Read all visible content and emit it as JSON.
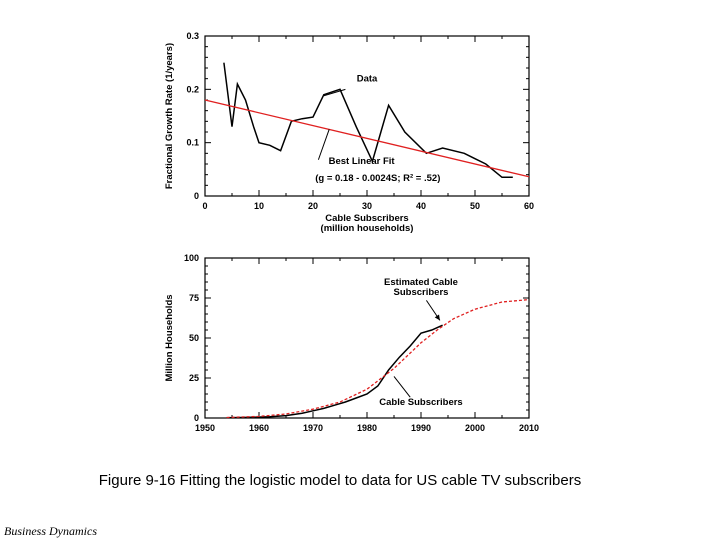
{
  "caption": "Figure 9-16 Fitting the logistic model to data for US cable TV subscribers",
  "footer": "Business Dynamics",
  "colors": {
    "data_line": "#000000",
    "fit_line": "#e02020",
    "estimated_line": "#e02020"
  },
  "chart_data": [
    {
      "type": "line",
      "xlabel": [
        "Cable Subscribers",
        "(million households)"
      ],
      "ylabel": "Fractional Growth Rate (1/years)",
      "xlim": [
        0,
        60
      ],
      "ylim": [
        0,
        0.3
      ],
      "xticks": [
        0,
        10,
        20,
        30,
        40,
        50,
        60
      ],
      "yticks": [
        0,
        0.1,
        0.2,
        0.3
      ],
      "series": [
        {
          "name": "Data",
          "x": [
            3.5,
            5,
            6,
            7.5,
            9,
            10,
            12,
            14,
            16,
            18,
            20,
            22,
            25,
            28,
            31,
            34,
            37,
            41,
            44,
            48,
            50,
            52,
            55,
            57
          ],
          "y": [
            0.25,
            0.13,
            0.21,
            0.18,
            0.13,
            0.1,
            0.095,
            0.085,
            0.14,
            0.145,
            0.148,
            0.19,
            0.2,
            0.13,
            0.065,
            0.17,
            0.12,
            0.08,
            0.09,
            0.08,
            0.07,
            0.06,
            0.035,
            0.035
          ],
          "color": "#000000"
        },
        {
          "name": "Best Linear Fit",
          "x": [
            0,
            60
          ],
          "y": [
            0.18,
            0.036
          ],
          "color": "#e02020"
        }
      ],
      "annotations": [
        {
          "text": "Data",
          "x": 30,
          "y": 0.215
        },
        {
          "text": "Best Linear Fit",
          "x": 29,
          "y": 0.06
        },
        {
          "text": "(g = 0.18 - 0.0024S; R² = .52)",
          "x": 32,
          "y": 0.028
        }
      ]
    },
    {
      "type": "line",
      "xlabel": "",
      "ylabel": "Million Households",
      "xlim": [
        1950,
        2010
      ],
      "ylim": [
        0,
        100
      ],
      "xticks": [
        1950,
        1960,
        1970,
        1980,
        1990,
        2000,
        2010
      ],
      "yticks": [
        0,
        25,
        50,
        75,
        100
      ],
      "series": [
        {
          "name": "Cable Subscribers",
          "x": [
            1954,
            1958,
            1962,
            1965,
            1968,
            1970,
            1972,
            1974,
            1976,
            1978,
            1980,
            1982,
            1984,
            1986,
            1988,
            1990,
            1992,
            1994
          ],
          "y": [
            0.2,
            0.4,
            0.8,
            1.5,
            3,
            4.5,
            6,
            8,
            10,
            12.5,
            15,
            20,
            30,
            38,
            45,
            53,
            55,
            58
          ],
          "color": "#000000"
        },
        {
          "name": "Estimated Cable Subscribers",
          "x": [
            1954,
            1960,
            1965,
            1970,
            1975,
            1980,
            1985,
            1990,
            1993,
            1996,
            2000,
            2005,
            2010
          ],
          "y": [
            0.3,
            1,
            2.5,
            5.5,
            10,
            18,
            31,
            47,
            55,
            62,
            68,
            72.5,
            74
          ],
          "color": "#e02020"
        }
      ],
      "annotations": [
        {
          "text": "Estimated Cable",
          "x": 1990,
          "y": 83
        },
        {
          "text": "Subscribers",
          "x": 1990,
          "y": 77
        },
        {
          "text": "Cable Subscribers",
          "x": 1990,
          "y": 8
        }
      ]
    }
  ]
}
